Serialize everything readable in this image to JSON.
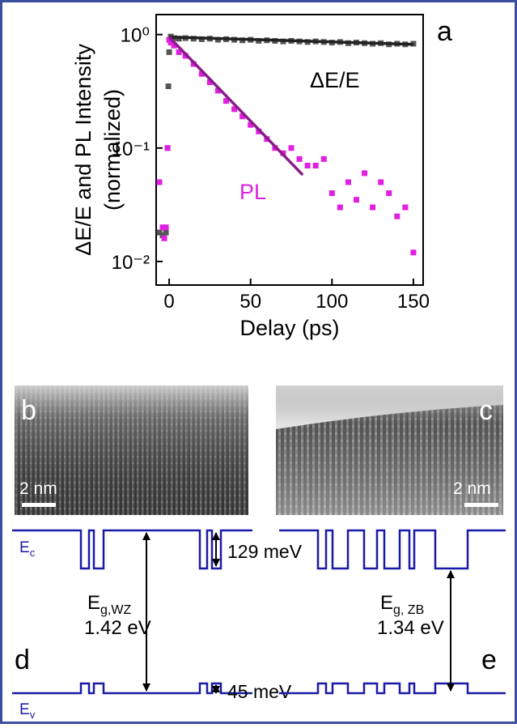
{
  "chart_data": {
    "type": "scatter",
    "ylog": true,
    "xlabel": "Delay (ps)",
    "ylabel": [
      "ΔE/E and PL Intensity",
      "(normalized)"
    ],
    "panel_label": "a",
    "xlim": [
      -8,
      156
    ],
    "ylim": [
      0.0062,
      1.5
    ],
    "xticks": [
      0,
      50,
      100,
      150
    ],
    "yticks": [
      {
        "value": 1,
        "label": "10⁰"
      },
      {
        "value": 0.1,
        "label": "10⁻¹"
      },
      {
        "value": 0.01,
        "label": "10⁻²"
      }
    ],
    "series": [
      {
        "name": "ΔE/E",
        "color": "#555555",
        "x": [
          -6,
          -4,
          -2,
          -1,
          -0.5,
          0,
          0.5,
          1,
          3,
          6,
          10,
          15,
          20,
          25,
          30,
          35,
          40,
          45,
          50,
          55,
          60,
          65,
          70,
          75,
          80,
          85,
          90,
          95,
          100,
          105,
          110,
          115,
          120,
          125,
          130,
          135,
          140,
          145,
          150
        ],
        "values": [
          0.018,
          0.017,
          0.018,
          0.1,
          0.35,
          0.7,
          0.9,
          0.96,
          0.93,
          0.92,
          0.93,
          0.92,
          0.91,
          0.92,
          0.9,
          0.91,
          0.9,
          0.89,
          0.9,
          0.88,
          0.89,
          0.88,
          0.87,
          0.88,
          0.87,
          0.86,
          0.87,
          0.86,
          0.85,
          0.86,
          0.84,
          0.85,
          0.84,
          0.83,
          0.84,
          0.82,
          0.83,
          0.82,
          0.83
        ],
        "fit": {
          "color": "#222222",
          "x": [
            0,
            150
          ],
          "values": [
            0.95,
            0.82
          ]
        }
      },
      {
        "name": "PL",
        "color": "#e020e0",
        "x": [
          -6,
          -4,
          -3,
          -2,
          -1,
          0,
          1,
          3,
          6,
          10,
          15,
          20,
          25,
          30,
          35,
          40,
          45,
          50,
          55,
          60,
          65,
          70,
          75,
          80,
          85,
          90,
          95,
          100,
          105,
          110,
          115,
          120,
          125,
          130,
          135,
          140,
          145,
          150
        ],
        "values": [
          0.05,
          0.02,
          0.016,
          0.02,
          0.1,
          0.9,
          0.85,
          0.8,
          0.7,
          0.65,
          0.55,
          0.45,
          0.38,
          0.32,
          0.26,
          0.22,
          0.19,
          0.16,
          0.14,
          0.12,
          0.1,
          0.09,
          0.1,
          0.08,
          0.07,
          0.07,
          0.08,
          0.04,
          0.03,
          0.05,
          0.035,
          0.06,
          0.03,
          0.05,
          0.04,
          0.025,
          0.03,
          0.012
        ],
        "fit": {
          "color": "#8a1a8a",
          "x": [
            0,
            82
          ],
          "values": [
            0.95,
            0.058
          ]
        }
      }
    ]
  },
  "panels": {
    "b": {
      "label": "b",
      "scale": "2 nm"
    },
    "c": {
      "label": "c",
      "scale": "2 nm"
    },
    "d": {
      "label": "d",
      "ec": {
        "main": "E",
        "sub": "c"
      },
      "ev": {
        "main": "E",
        "sub": "v"
      },
      "gap": {
        "main": "E",
        "sub": "g,WZ"
      },
      "gap_value": "1.42 eV",
      "cb_offset": "129 meV",
      "vb_offset": "45 meV"
    },
    "e": {
      "label": "e",
      "gap": {
        "main": "E",
        "sub": "g, ZB"
      },
      "gap_value": "1.34 eV"
    }
  }
}
